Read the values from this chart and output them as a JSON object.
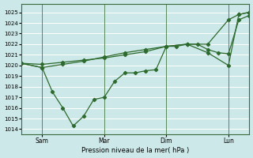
{
  "xlabel": "Pression niveau de la mer( hPa )",
  "ylim": [
    1013.5,
    1025.8
  ],
  "yticks": [
    1014,
    1015,
    1016,
    1017,
    1018,
    1019,
    1020,
    1021,
    1022,
    1023,
    1024,
    1025
  ],
  "bg_color": "#cce8e8",
  "grid_color": "#ffffff",
  "line_color": "#2d6a2d",
  "xlim": [
    0,
    22
  ],
  "vlines": [
    2,
    8,
    14,
    20
  ],
  "x_tick_positions": [
    2,
    8,
    14,
    20
  ],
  "x_tick_labels": [
    "Sam",
    "Mar",
    "Dim",
    "Lun"
  ],
  "series1": {
    "x": [
      0,
      2,
      4,
      6,
      8,
      10,
      12,
      14,
      16,
      18,
      20,
      21,
      22
    ],
    "y": [
      1020.2,
      1020.1,
      1020.3,
      1020.5,
      1020.7,
      1021.0,
      1021.3,
      1021.8,
      1022.0,
      1022.0,
      1024.3,
      1024.8,
      1025.0
    ]
  },
  "series2": {
    "x": [
      0,
      2,
      3,
      4,
      5,
      6,
      7,
      8,
      9,
      10,
      11,
      12,
      13,
      14,
      16,
      18,
      20,
      21,
      22
    ],
    "y": [
      1020.2,
      1019.8,
      1017.5,
      1016.0,
      1014.3,
      1015.2,
      1016.8,
      1017.0,
      1018.5,
      1019.3,
      1019.3,
      1019.5,
      1019.6,
      1021.8,
      1022.0,
      1021.2,
      1020.0,
      1024.8,
      1025.0
    ]
  },
  "series3": {
    "x": [
      0,
      2,
      4,
      6,
      8,
      10,
      12,
      14,
      15,
      16,
      17,
      18,
      19,
      20,
      21,
      22
    ],
    "y": [
      1020.2,
      1019.8,
      1020.1,
      1020.4,
      1020.8,
      1021.2,
      1021.5,
      1021.8,
      1021.8,
      1022.0,
      1022.0,
      1021.5,
      1021.2,
      1021.1,
      1024.3,
      1024.7
    ]
  }
}
